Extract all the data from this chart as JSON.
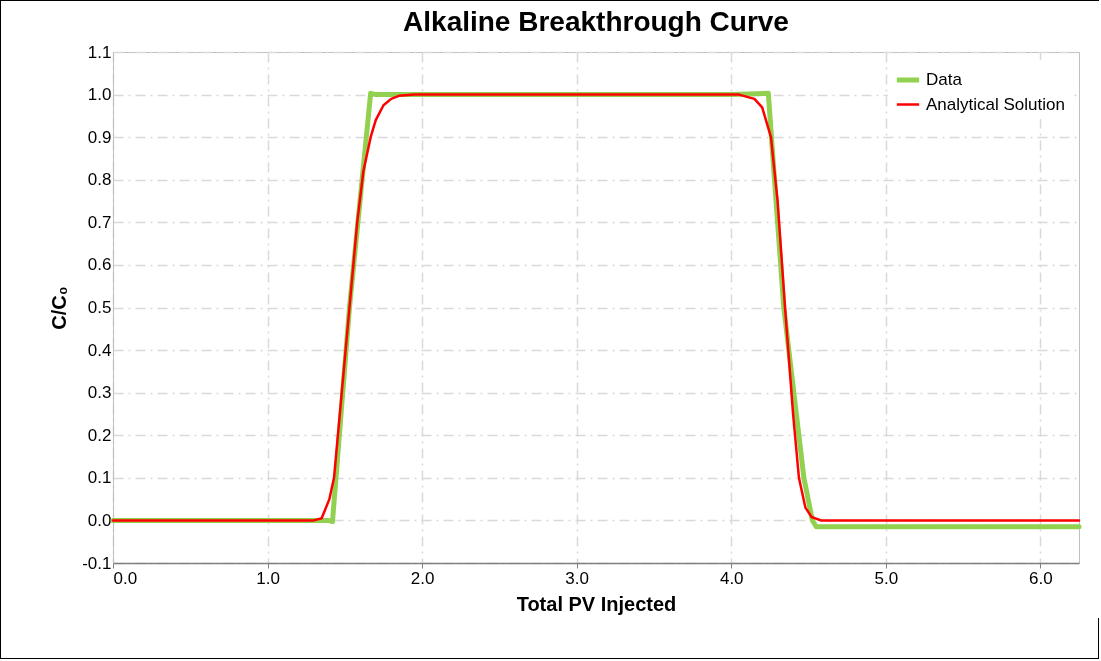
{
  "chart_data": {
    "type": "line",
    "title": "Alkaline Breakthrough Curve",
    "xlabel": "Total PV Injected",
    "ylabel": "C/C₀",
    "xlim": [
      0,
      6.25
    ],
    "ylim": [
      -0.1,
      1.1
    ],
    "xticks": [
      {
        "value": 0,
        "label": "0.0"
      },
      {
        "value": 1,
        "label": "1.0"
      },
      {
        "value": 2,
        "label": "2.0"
      },
      {
        "value": 3,
        "label": "3.0"
      },
      {
        "value": 4,
        "label": "4.0"
      },
      {
        "value": 5,
        "label": "5.0"
      },
      {
        "value": 6,
        "label": "6.0"
      }
    ],
    "yticks": [
      {
        "value": -0.1,
        "label": "-0.1"
      },
      {
        "value": 0,
        "label": "0.0"
      },
      {
        "value": 0.1,
        "label": "0.1"
      },
      {
        "value": 0.2,
        "label": "0.2"
      },
      {
        "value": 0.3,
        "label": "0.3"
      },
      {
        "value": 0.4,
        "label": "0.4"
      },
      {
        "value": 0.5,
        "label": "0.5"
      },
      {
        "value": 0.6,
        "label": "0.6"
      },
      {
        "value": 0.7,
        "label": "0.7"
      },
      {
        "value": 0.8,
        "label": "0.8"
      },
      {
        "value": 0.9,
        "label": "0.9"
      },
      {
        "value": 1,
        "label": "1.0"
      },
      {
        "value": 1.1,
        "label": "1.1"
      }
    ],
    "grid": true,
    "legend": "top right",
    "marker": "none",
    "line_style": "solid",
    "series": [
      {
        "name": "Data",
        "color": "#92d050",
        "x": [
          0,
          1.39,
          1.42,
          1.53,
          1.667,
          1.7,
          2.0,
          4.0,
          4.24,
          4.26,
          4.34,
          4.47,
          4.525,
          4.55,
          5.0,
          6.25
        ],
        "values": [
          0,
          0,
          -0.003,
          0.5,
          1.003,
          1.0,
          1.0,
          1.0,
          1.003,
          0.9,
          0.5,
          0.1,
          0,
          -0.015,
          -0.015,
          -0.015
        ]
      },
      {
        "name": "Analytical Solution",
        "color": "#ff0000",
        "x": [
          0,
          1.3,
          1.35,
          1.4,
          1.43,
          1.48,
          1.53,
          1.58,
          1.62,
          1.667,
          1.7,
          1.75,
          1.8,
          1.85,
          1.95,
          4.05,
          4.15,
          4.2,
          4.257,
          4.3,
          4.348,
          4.4,
          4.438,
          4.48,
          4.52,
          4.58,
          6.25
        ],
        "values": [
          0,
          0,
          0.005,
          0.05,
          0.1,
          0.3,
          0.5,
          0.7,
          0.82,
          0.9,
          0.94,
          0.975,
          0.99,
          0.997,
          1.0,
          1.0,
          0.99,
          0.97,
          0.9,
          0.75,
          0.5,
          0.25,
          0.1,
          0.03,
          0.008,
          0,
          0
        ]
      }
    ]
  }
}
